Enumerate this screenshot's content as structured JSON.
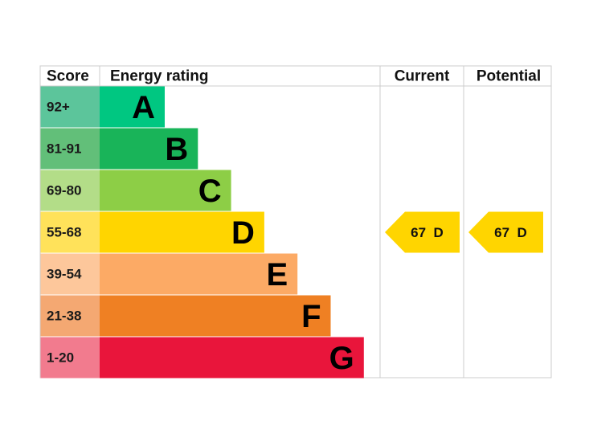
{
  "header": {
    "score": "Score",
    "rating": "Energy rating",
    "current": "Current",
    "potential": "Potential"
  },
  "rows": [
    {
      "score": "92+",
      "letter": "A",
      "color": "#00c781",
      "score_color": "#5cc59b"
    },
    {
      "score": "81-91",
      "letter": "B",
      "color": "#19b459",
      "score_color": "#62bf79"
    },
    {
      "score": "69-80",
      "letter": "C",
      "color": "#8dce46",
      "score_color": "#b3dd88"
    },
    {
      "score": "55-68",
      "letter": "D",
      "color": "#ffd500",
      "score_color": "#ffe25a"
    },
    {
      "score": "39-54",
      "letter": "E",
      "color": "#fcaa65",
      "score_color": "#fdc79b"
    },
    {
      "score": "21-38",
      "letter": "F",
      "color": "#ef8023",
      "score_color": "#f4a872"
    },
    {
      "score": "1-20",
      "letter": "G",
      "color": "#e9153b",
      "score_color": "#f27b8e"
    }
  ],
  "current": {
    "score": 67,
    "rating": "D"
  },
  "potential": {
    "score": 67,
    "rating": "D"
  }
}
